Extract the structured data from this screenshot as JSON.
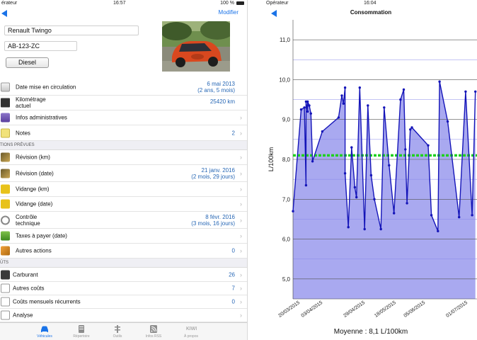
{
  "left": {
    "status": {
      "carrier": "érateur",
      "time": "16:57",
      "battery": "100 %"
    },
    "nav": {
      "edit_label": "Modifier"
    },
    "vehicle": {
      "name": "Renault Twingo",
      "plate": "AB-123-ZC",
      "fuel": "Diesel"
    },
    "rows": [
      {
        "label": "Date mise en circulation",
        "value1": "6 mai 2013",
        "value2": "(2 ans, 5 mois)",
        "icon": "calendar-icon",
        "h": 24
      },
      {
        "label": "Kilométrage",
        "label2": "actuel",
        "value1": "25420 km",
        "value2": "",
        "icon": "odometer-icon",
        "h": 21
      },
      {
        "label": "Infos administratives",
        "value1": "",
        "value2": "",
        "icon": "folder-icon",
        "h": 21
      },
      {
        "label": "Notes",
        "value1": "2",
        "value2": "",
        "icon": "notes-icon",
        "h": 22
      }
    ],
    "section_planned": "TIONS PRÉVUES",
    "planned_rows": [
      {
        "label": "Révision (km)",
        "value1": "",
        "value2": "",
        "icon": "wrench-icon",
        "h": 21
      },
      {
        "label": "Révision (date)",
        "value1": "21 janv. 2016",
        "value2": "(2 mois, 29 jours)",
        "icon": "wrench-icon",
        "h": 24
      },
      {
        "label": "Vidange (km)",
        "value1": "",
        "value2": "",
        "icon": "oil-can-icon",
        "h": 21
      },
      {
        "label": "Vidange (date)",
        "value1": "",
        "value2": "",
        "icon": "oil-can-icon",
        "h": 21
      },
      {
        "label": "Contrôle",
        "label2": "technique",
        "value1": "8 févr. 2016",
        "value2": "(3 mois, 16 jours)",
        "icon": "magnifier-icon",
        "h": 24
      },
      {
        "label": "Taxes à payer (date)",
        "value1": "",
        "value2": "",
        "icon": "money-icon",
        "h": 21
      },
      {
        "label": "Autres actions",
        "value1": "0",
        "value2": "",
        "icon": "tools-icon",
        "h": 21
      }
    ],
    "section_costs": "ÛTS",
    "cost_rows": [
      {
        "label": "Carburant",
        "value1": "26",
        "icon": "fuel-pump-icon",
        "h": 20
      },
      {
        "label": "Autres coûts",
        "value1": "7",
        "icon": "receipt-icon",
        "h": 19
      },
      {
        "label": "Coûts mensuels récurrents",
        "value1": "0",
        "icon": "recurring-icon",
        "h": 19
      },
      {
        "label": "Analyse",
        "value1": "",
        "icon": "chart-icon",
        "h": 19
      }
    ],
    "tabs": [
      {
        "label": "Véhicules",
        "icon": "car-icon",
        "active": true
      },
      {
        "label": "Répertoire",
        "icon": "book-icon",
        "active": false
      },
      {
        "label": "Outils",
        "icon": "tools-icon",
        "active": false
      },
      {
        "label": "Infos RSS",
        "icon": "rss-icon",
        "active": false
      },
      {
        "label": "À propos",
        "icon": "kiwi-logo",
        "logo_text": "KIWI",
        "active": false
      }
    ]
  },
  "right": {
    "status": {
      "carrier": "Opérateur",
      "time": "16:04"
    },
    "nav": {
      "title": "Consommation"
    },
    "footer": "Moyenne : 8,1 L/100km",
    "colors": {
      "line": "#1414b8",
      "fill": "#a9a9f0",
      "average": "#1fd11f",
      "grid": "#8888e8"
    }
  },
  "chart_data": {
    "type": "area",
    "title": "",
    "xlabel": "",
    "ylabel": "L/100km",
    "ylim": [
      4.5,
      11.5
    ],
    "yticks": [
      "5,0",
      "6,0",
      "7,0",
      "8,0",
      "9,0",
      "10,0",
      "11,0"
    ],
    "xticks": [
      "20/03/2015",
      "03/04/2015",
      "29/04/2015",
      "18/05/2015",
      "05/06/2015",
      "01/07/2015"
    ],
    "average": 8.1,
    "x": [
      "2015-03-17",
      "2015-03-22",
      "2015-03-24",
      "2015-03-25",
      "2015-03-25",
      "2015-03-26",
      "2015-03-26",
      "2015-03-27",
      "2015-03-28",
      "2015-03-29",
      "2015-04-04",
      "2015-04-14",
      "2015-04-16",
      "2015-04-17",
      "2015-04-18",
      "2015-04-18",
      "2015-04-20",
      "2015-04-22",
      "2015-04-24",
      "2015-04-25",
      "2015-04-27",
      "2015-04-30",
      "2015-05-02",
      "2015-05-04",
      "2015-05-06",
      "2015-05-10",
      "2015-05-12",
      "2015-05-15",
      "2015-05-18",
      "2015-05-22",
      "2015-05-24",
      "2015-05-25",
      "2015-05-26",
      "2015-05-28",
      "2015-05-29",
      "2015-06-08",
      "2015-06-10",
      "2015-06-14",
      "2015-06-15",
      "2015-06-20",
      "2015-06-27",
      "2015-07-01",
      "2015-07-05",
      "2015-07-07"
    ],
    "y": [
      6.7,
      9.25,
      9.3,
      7.35,
      9.45,
      9.2,
      9.45,
      9.35,
      9.15,
      7.95,
      8.7,
      9.05,
      9.6,
      9.4,
      9.8,
      7.65,
      6.3,
      8.3,
      7.3,
      7.05,
      9.8,
      6.25,
      9.35,
      7.6,
      7.0,
      6.25,
      9.3,
      7.85,
      6.65,
      9.5,
      9.75,
      8.25,
      6.9,
      8.75,
      8.8,
      8.35,
      6.6,
      6.2,
      9.95,
      8.95,
      6.55,
      9.7,
      6.6,
      9.7
    ],
    "xrange": [
      "2015-03-17",
      "2015-07-08"
    ]
  }
}
